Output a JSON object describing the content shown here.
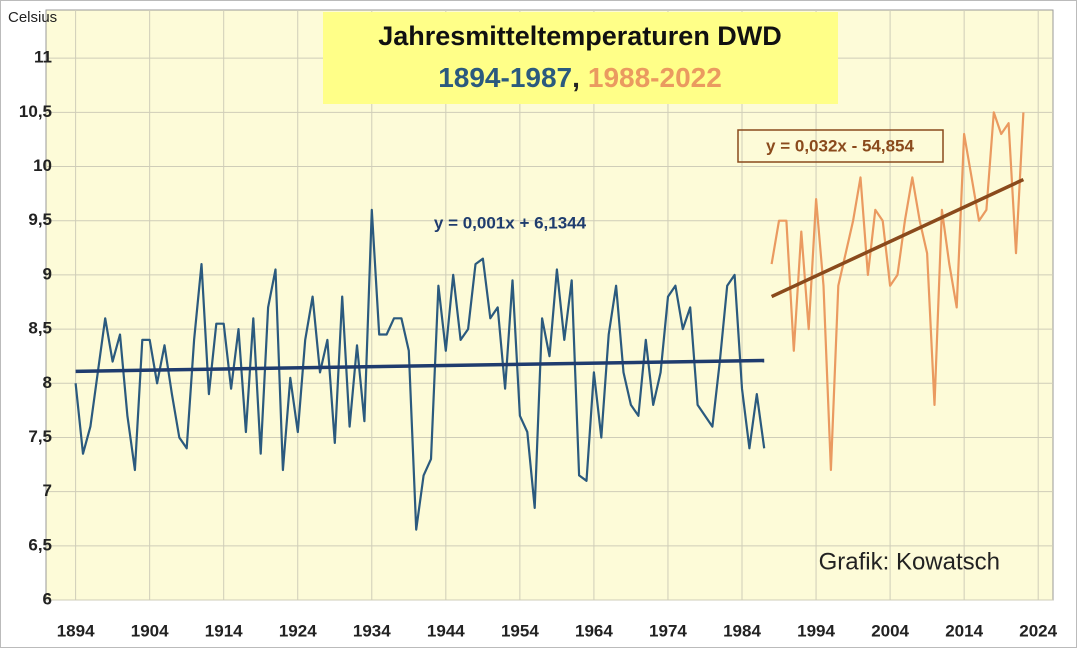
{
  "chart_data": {
    "type": "line",
    "title": "Jahresmitteltemperaturen DWD",
    "subtitle_separator": ",",
    "ylabel": "Celsius",
    "annotation": "Grafik: Kowatsch",
    "xlim": [
      1890,
      2026
    ],
    "xticks": [
      1894,
      1904,
      1914,
      1924,
      1934,
      1944,
      1954,
      1964,
      1974,
      1984,
      1994,
      2004,
      2014,
      2024
    ],
    "ylim": [
      6,
      11.5
    ],
    "yticks": [
      6,
      {
        "value": 6.5,
        "label": "6,5"
      },
      7,
      {
        "value": 7.5,
        "label": "7,5"
      },
      8,
      {
        "value": 8.5,
        "label": "8,5"
      },
      9,
      {
        "value": 9.5,
        "label": "9,5"
      },
      10,
      {
        "value": 10.5,
        "label": "10,5"
      },
      11
    ],
    "grid": true,
    "series": [
      {
        "name": "1894-1987",
        "color": "#2b5a7e",
        "x": [
          1894,
          1895,
          1896,
          1897,
          1898,
          1899,
          1900,
          1901,
          1902,
          1903,
          1904,
          1905,
          1906,
          1907,
          1908,
          1909,
          1910,
          1911,
          1912,
          1913,
          1914,
          1915,
          1916,
          1917,
          1918,
          1919,
          1920,
          1921,
          1922,
          1923,
          1924,
          1925,
          1926,
          1927,
          1928,
          1929,
          1930,
          1931,
          1932,
          1933,
          1934,
          1935,
          1936,
          1937,
          1938,
          1939,
          1940,
          1941,
          1942,
          1943,
          1944,
          1945,
          1946,
          1947,
          1948,
          1949,
          1950,
          1951,
          1952,
          1953,
          1954,
          1955,
          1956,
          1957,
          1958,
          1959,
          1960,
          1961,
          1962,
          1963,
          1964,
          1965,
          1966,
          1967,
          1968,
          1969,
          1970,
          1971,
          1972,
          1973,
          1974,
          1975,
          1976,
          1977,
          1978,
          1979,
          1980,
          1981,
          1982,
          1983,
          1984,
          1985,
          1986,
          1987
        ],
        "values": [
          8.0,
          7.35,
          7.6,
          8.1,
          8.6,
          8.2,
          8.45,
          7.7,
          7.2,
          8.4,
          8.4,
          8.0,
          8.35,
          7.9,
          7.5,
          7.4,
          8.4,
          9.1,
          7.9,
          8.55,
          8.55,
          7.95,
          8.5,
          7.55,
          8.6,
          7.35,
          8.7,
          9.05,
          7.2,
          8.05,
          7.55,
          8.4,
          8.8,
          8.1,
          8.4,
          7.45,
          8.8,
          7.6,
          8.35,
          7.65,
          9.6,
          8.45,
          8.45,
          8.6,
          8.6,
          8.3,
          6.65,
          7.15,
          7.3,
          8.9,
          8.3,
          9.0,
          8.4,
          8.5,
          9.1,
          9.15,
          8.6,
          8.7,
          7.95,
          8.95,
          7.7,
          7.55,
          6.85,
          8.6,
          8.25,
          9.05,
          8.4,
          8.95,
          7.15,
          7.1,
          8.1,
          7.5,
          8.45,
          8.9,
          8.1,
          7.8,
          7.7,
          8.4,
          7.8,
          8.1,
          8.8,
          8.9,
          8.5,
          8.7,
          7.8,
          7.7,
          7.6,
          8.2,
          8.9,
          9.0,
          7.95,
          7.4,
          7.9,
          7.4
        ]
      },
      {
        "name": "1988-2022",
        "color": "#ea9a60",
        "x": [
          1988,
          1989,
          1990,
          1991,
          1992,
          1993,
          1994,
          1995,
          1996,
          1997,
          1998,
          1999,
          2000,
          2001,
          2002,
          2003,
          2004,
          2005,
          2006,
          2007,
          2008,
          2009,
          2010,
          2011,
          2012,
          2013,
          2014,
          2015,
          2016,
          2017,
          2018,
          2019,
          2020,
          2021,
          2022
        ],
        "values": [
          9.1,
          9.5,
          9.5,
          8.3,
          9.4,
          8.5,
          9.7,
          8.9,
          7.2,
          8.9,
          9.2,
          9.5,
          9.9,
          9.0,
          9.6,
          9.5,
          8.9,
          9.0,
          9.5,
          9.9,
          9.5,
          9.2,
          7.8,
          9.6,
          9.1,
          8.7,
          10.3,
          9.9,
          9.5,
          9.6,
          10.5,
          10.3,
          10.4,
          9.2,
          10.5
        ]
      }
    ],
    "trendlines": [
      {
        "label": "y = 0,001x + 6,1344",
        "color": "#1f3c6e",
        "x": [
          1894,
          1987
        ],
        "values": [
          8.11,
          8.21
        ]
      },
      {
        "label": "y = 0,032x - 54,854",
        "color": "#8a4a1c",
        "x": [
          1988,
          2022
        ],
        "values": [
          8.8,
          9.88
        ]
      }
    ]
  }
}
